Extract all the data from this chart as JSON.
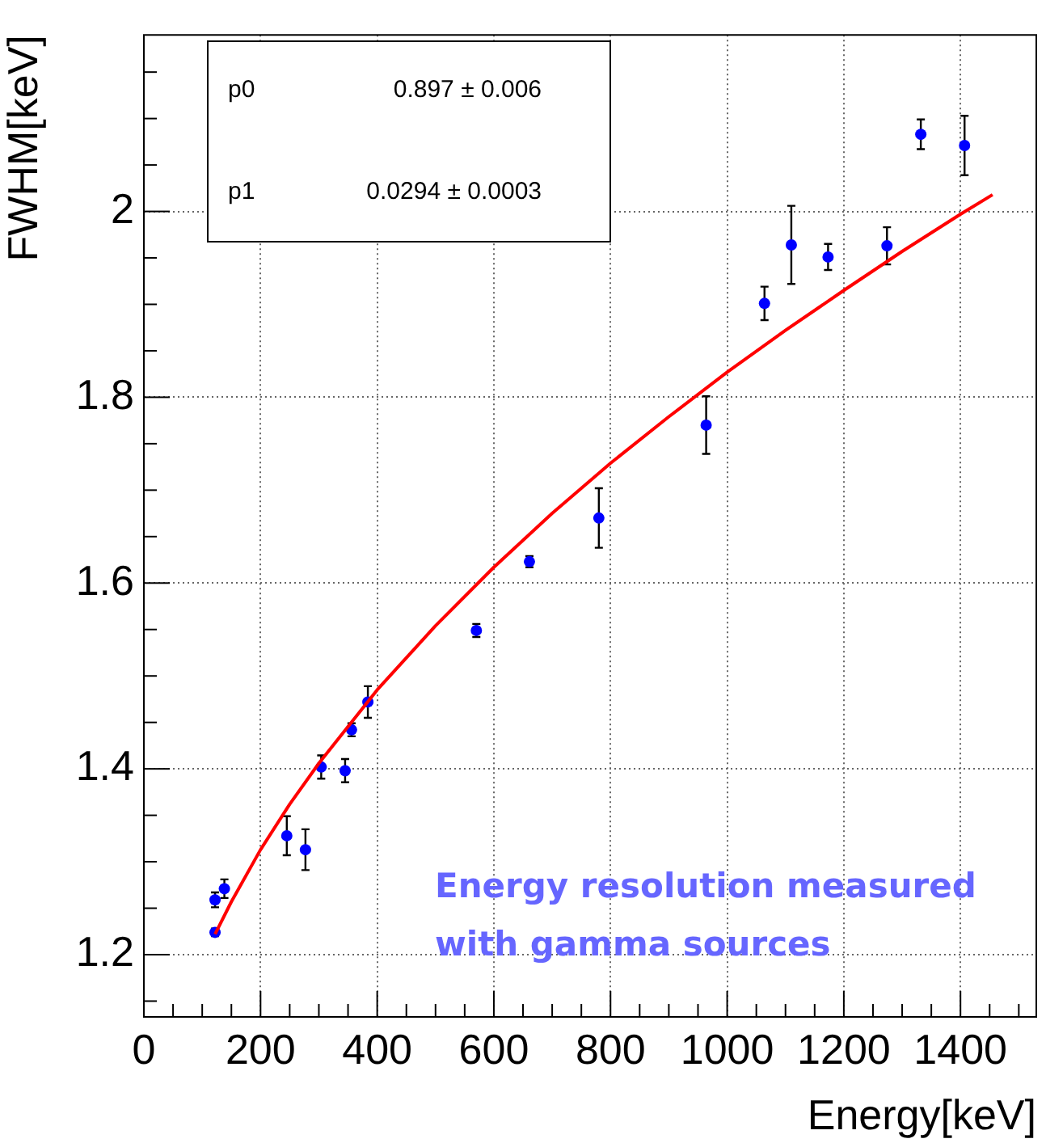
{
  "chart_data": {
    "type": "scatter",
    "xlabel": "Energy[keV]",
    "ylabel": "FWHM[keV]",
    "xlim": [
      0,
      1530
    ],
    "ylim": [
      1.133,
      2.19
    ],
    "xticks": [
      0,
      {
        "value": 50,
        "label": null
      },
      {
        "value": 100,
        "label": null
      },
      {
        "value": 150,
        "label": null
      },
      200,
      {
        "value": 250,
        "label": null
      },
      {
        "value": 300,
        "label": null
      },
      {
        "value": 350,
        "label": null
      },
      400,
      {
        "value": 450,
        "label": null
      },
      {
        "value": 500,
        "label": null
      },
      {
        "value": 550,
        "label": null
      },
      600,
      {
        "value": 650,
        "label": null
      },
      {
        "value": 700,
        "label": null
      },
      {
        "value": 750,
        "label": null
      },
      800,
      {
        "value": 850,
        "label": null
      },
      {
        "value": 900,
        "label": null
      },
      {
        "value": 950,
        "label": null
      },
      1000,
      {
        "value": 1050,
        "label": null
      },
      {
        "value": 1100,
        "label": null
      },
      {
        "value": 1150,
        "label": null
      },
      1200,
      {
        "value": 1250,
        "label": null
      },
      {
        "value": 1300,
        "label": null
      },
      {
        "value": 1350,
        "label": null
      },
      1400,
      {
        "value": 1450,
        "label": null
      },
      {
        "value": 1500,
        "label": null
      }
    ],
    "yticks": [
      {
        "value": 1.15,
        "label": null
      },
      1.2,
      {
        "value": 1.25,
        "label": null
      },
      {
        "value": 1.3,
        "label": null
      },
      {
        "value": 1.35,
        "label": null
      },
      1.4,
      {
        "value": 1.45,
        "label": null
      },
      {
        "value": 1.5,
        "label": null
      },
      {
        "value": 1.55,
        "label": null
      },
      1.6,
      {
        "value": 1.65,
        "label": null
      },
      {
        "value": 1.7,
        "label": null
      },
      {
        "value": 1.75,
        "label": null
      },
      1.8,
      {
        "value": 1.85,
        "label": null
      },
      {
        "value": 1.9,
        "label": null
      },
      {
        "value": 1.95,
        "label": null
      },
      2.0,
      {
        "value": 2.05,
        "label": null
      },
      {
        "value": 2.1,
        "label": null
      },
      {
        "value": 2.15,
        "label": null
      }
    ],
    "grid": true,
    "legend": false,
    "series": [
      {
        "marker": "circle",
        "color": "#0000ff",
        "x": [
          122,
          122,
          138,
          245,
          277,
          304,
          345,
          356,
          384,
          570,
          661,
          780,
          964,
          1064,
          1110,
          1173,
          1274,
          1332,
          1407
        ],
        "values": [
          1.224,
          1.259,
          1.271,
          1.328,
          1.313,
          1.402,
          1.398,
          1.442,
          1.472,
          1.549,
          1.623,
          1.67,
          1.77,
          1.901,
          1.964,
          1.951,
          1.963,
          2.083,
          2.071
        ],
        "errors": [
          0.004,
          0.008,
          0.01,
          0.021,
          0.022,
          0.0125,
          0.0125,
          0.007,
          0.017,
          0.007,
          0.006,
          0.032,
          0.031,
          0.018,
          0.042,
          0.014,
          0.02,
          0.016,
          0.032
        ]
      },
      {
        "type": "line",
        "color": "#ff0000",
        "x": [
          122,
          150,
          200,
          250,
          300,
          400,
          500,
          600,
          700,
          800,
          900,
          1000,
          1100,
          1200,
          1300,
          1400,
          1455
        ],
        "values": [
          1.222,
          1.257,
          1.313,
          1.362,
          1.406,
          1.485,
          1.554,
          1.617,
          1.675,
          1.729,
          1.779,
          1.827,
          1.872,
          1.915,
          1.957,
          1.997,
          2.018
        ]
      }
    ],
    "annotations": [
      "p0",
      "0.897 ± 0.006",
      "p1",
      "0.0294 ± 0.0003",
      "Energy resolution measured",
      "with gamma sources"
    ]
  }
}
